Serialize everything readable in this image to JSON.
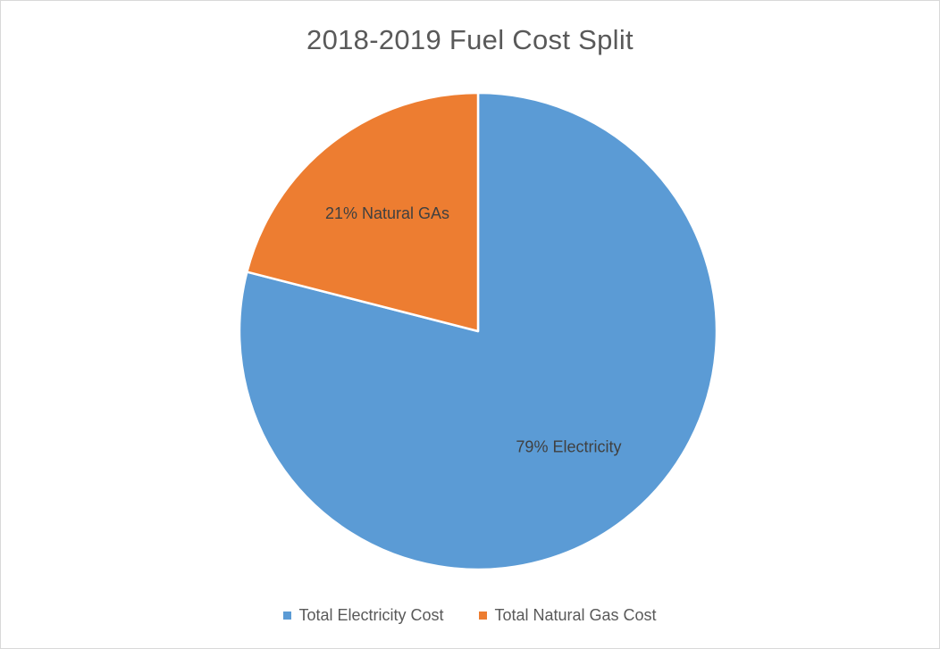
{
  "chart_data": {
    "type": "pie",
    "title": "2018-2019 Fuel Cost Split",
    "start_angle_deg": 0,
    "direction": "clockwise",
    "slices": [
      {
        "name": "Total Electricity Cost",
        "value": 79,
        "label": "79% Electricity",
        "color": "#5b9bd5"
      },
      {
        "name": "Total Natural Gas Cost",
        "value": 21,
        "label": "21% Natural GAs",
        "color": "#ed7d31"
      }
    ],
    "legend": {
      "position": "bottom",
      "entries": [
        "Total Electricity Cost",
        "Total Natural Gas Cost"
      ]
    }
  }
}
